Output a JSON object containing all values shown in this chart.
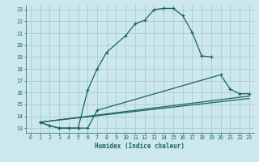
{
  "bg_color": "#cce8ee",
  "grid_color": "#aacccc",
  "line_color": "#1a6655",
  "xlabel": "Humidex (Indice chaleur)",
  "xlim": [
    -0.5,
    23.5
  ],
  "ylim": [
    12.6,
    23.4
  ],
  "yticks": [
    13,
    14,
    15,
    16,
    17,
    18,
    19,
    20,
    21,
    22,
    23
  ],
  "xticks": [
    0,
    1,
    2,
    3,
    4,
    5,
    6,
    7,
    8,
    9,
    10,
    11,
    12,
    13,
    14,
    15,
    16,
    17,
    18,
    19,
    20,
    21,
    22,
    23
  ],
  "line1_x": [
    1,
    2,
    3,
    4,
    5,
    6,
    7,
    8,
    10,
    11,
    12,
    13,
    14,
    15,
    16,
    17,
    18,
    19
  ],
  "line1_y": [
    13.5,
    13.2,
    13.0,
    13.0,
    13.0,
    16.2,
    18.0,
    19.4,
    20.8,
    21.8,
    22.1,
    23.0,
    23.1,
    23.1,
    22.5,
    21.1,
    19.1,
    19.0
  ],
  "line2_x": [
    1,
    2,
    3,
    4,
    5,
    6,
    7,
    20,
    21,
    22,
    23
  ],
  "line2_y": [
    13.5,
    13.2,
    13.0,
    13.0,
    13.0,
    13.0,
    14.5,
    17.5,
    16.3,
    15.9,
    15.9
  ],
  "line3_x": [
    1,
    23
  ],
  "line3_y": [
    13.5,
    15.7
  ],
  "line4_x": [
    1,
    23
  ],
  "line4_y": [
    13.5,
    15.5
  ]
}
